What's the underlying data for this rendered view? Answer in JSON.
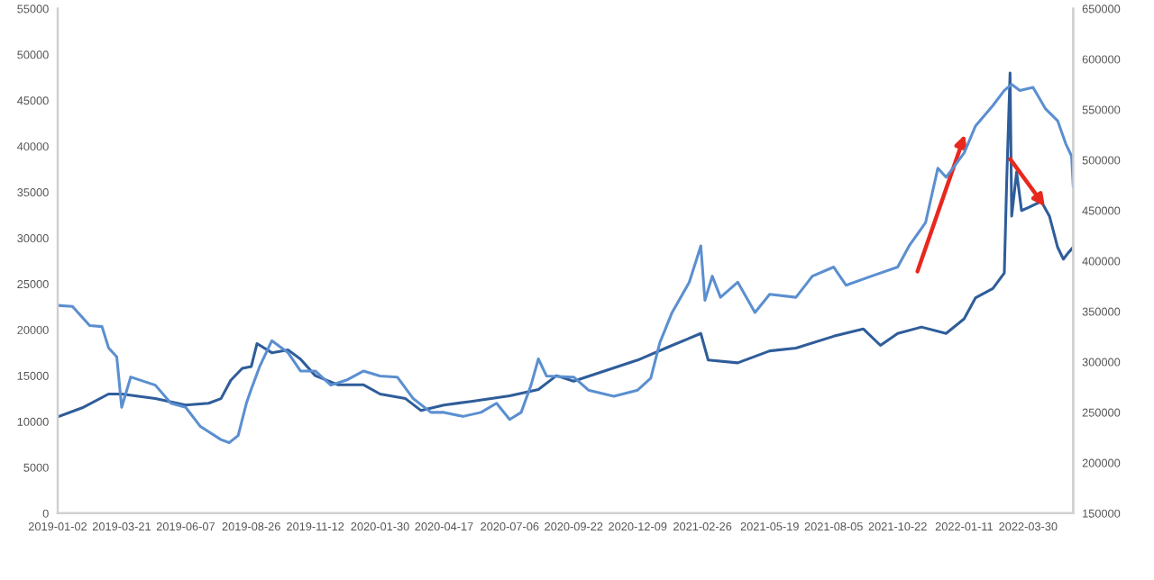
{
  "chart_data": {
    "type": "line",
    "x": [
      "2019-01-02",
      "2019-02-01",
      "2019-03-05",
      "2019-03-21",
      "2019-05-01",
      "2019-06-07",
      "2019-07-05",
      "2019-07-20",
      "2019-08-01",
      "2019-08-15",
      "2019-08-26",
      "2019-09-02",
      "2019-09-20",
      "2019-10-10",
      "2019-10-25",
      "2019-11-12",
      "2019-12-10",
      "2020-01-10",
      "2020-01-30",
      "2020-03-01",
      "2020-03-20",
      "2020-04-17",
      "2020-05-20",
      "2020-07-06",
      "2020-08-10",
      "2020-09-01",
      "2020-09-22",
      "2020-12-09",
      "2021-01-20",
      "2021-02-24",
      "2021-03-05",
      "2021-04-10",
      "2021-05-19",
      "2021-06-20",
      "2021-08-05",
      "2021-09-10",
      "2021-10-01",
      "2021-10-22",
      "2021-11-20",
      "2021-12-20",
      "2022-01-11",
      "2022-01-25",
      "2022-02-15",
      "2022-03-01",
      "2022-03-04",
      "2022-03-08",
      "2022-03-10",
      "2022-03-16",
      "2022-03-22",
      "2022-03-30",
      "2022-04-15",
      "2022-04-25",
      "2022-05-05",
      "2022-05-12",
      "2022-05-18",
      "2022-05-24"
    ],
    "xlim": [
      "2019-01-02",
      "2022-05-24"
    ],
    "xticks": [
      "2019-01-02",
      "2019-03-21",
      "2019-06-07",
      "2019-08-26",
      "2019-11-12",
      "2020-01-30",
      "2020-04-17",
      "2020-07-06",
      "2020-09-22",
      "2020-12-09",
      "2021-02-26",
      "2021-05-19",
      "2021-08-05",
      "2021-10-22",
      "2022-01-11",
      "2022-03-30"
    ],
    "ylim": [
      0,
      55000
    ],
    "yticks": [
      0,
      5000,
      10000,
      15000,
      20000,
      25000,
      30000,
      35000,
      40000,
      45000,
      50000,
      55000
    ],
    "y2lim": [
      150000,
      650000
    ],
    "y2ticks": [
      150000,
      200000,
      250000,
      300000,
      350000,
      400000,
      450000,
      500000,
      550000,
      600000,
      650000
    ],
    "grid": false,
    "marker": "none",
    "line_style": "solid",
    "series": [
      {
        "color": "#2f5d9a",
        "values": [
          10500,
          11500,
          13000,
          13000,
          12500,
          11800,
          12000,
          12500,
          14500,
          15800,
          16000,
          18500,
          17500,
          17800,
          16800,
          15000,
          14000,
          14000,
          13000,
          12500,
          11200,
          11800,
          12200,
          12800,
          13500,
          15000,
          14400,
          16700,
          18300,
          19600,
          16700,
          16400,
          17700,
          18000,
          19300,
          20100,
          18300,
          19600,
          20300,
          19600,
          21200,
          23500,
          24500,
          26200,
          36500,
          48000,
          32400,
          37200,
          33000,
          33300,
          34000,
          32400,
          29000,
          27700,
          28400,
          29000
        ]
      },
      {
        "axis": "y2",
        "color": "#5b8fd0",
        "x": [
          "2019-01-02",
          "2019-01-20",
          "2019-02-10",
          "2019-02-25",
          "2019-03-05",
          "2019-03-15",
          "2019-03-21",
          "2019-04-01",
          "2019-05-01",
          "2019-05-20",
          "2019-06-07",
          "2019-06-25",
          "2019-07-20",
          "2019-07-30",
          "2019-08-10",
          "2019-08-20",
          "2019-08-26",
          "2019-09-05",
          "2019-09-20",
          "2019-10-10",
          "2019-10-25",
          "2019-11-12",
          "2019-12-01",
          "2019-12-20",
          "2020-01-10",
          "2020-01-30",
          "2020-02-20",
          "2020-03-10",
          "2020-04-01",
          "2020-04-17",
          "2020-05-10",
          "2020-06-01",
          "2020-06-20",
          "2020-07-06",
          "2020-07-20",
          "2020-08-01",
          "2020-08-10",
          "2020-08-20",
          "2020-09-22",
          "2020-10-10",
          "2020-11-10",
          "2020-12-09",
          "2020-12-25",
          "2021-01-05",
          "2021-01-20",
          "2021-02-10",
          "2021-02-24",
          "2021-03-01",
          "2021-03-10",
          "2021-03-20",
          "2021-04-10",
          "2021-05-01",
          "2021-05-19",
          "2021-06-20",
          "2021-07-10",
          "2021-08-05",
          "2021-08-20",
          "2021-09-20",
          "2021-10-22",
          "2021-11-05",
          "2021-11-25",
          "2021-12-10",
          "2021-12-20",
          "2022-01-11",
          "2022-01-25",
          "2022-02-15",
          "2022-03-01",
          "2022-03-10",
          "2022-03-20",
          "2022-04-05",
          "2022-04-20",
          "2022-05-05",
          "2022-05-15",
          "2022-05-22",
          "2022-05-24"
        ],
        "values": [
          356000,
          355000,
          336000,
          335000,
          314000,
          305000,
          255000,
          285000,
          277000,
          259000,
          255000,
          236000,
          223000,
          220000,
          227000,
          259000,
          273000,
          295000,
          321000,
          309000,
          291000,
          291000,
          277000,
          282000,
          291000,
          286000,
          285000,
          264000,
          250000,
          250000,
          246000,
          250000,
          259000,
          243000,
          250000,
          277000,
          303000,
          286000,
          285000,
          272000,
          266000,
          272000,
          284000,
          319000,
          349000,
          379000,
          415000,
          361000,
          385000,
          364000,
          379000,
          349000,
          367000,
          364000,
          385000,
          394000,
          376000,
          385000,
          394000,
          415000,
          438000,
          492000,
          483000,
          507000,
          534000,
          554000,
          569000,
          575000,
          569000,
          572000,
          551000,
          539000,
          516000,
          504000,
          474000
        ]
      }
    ]
  }
}
